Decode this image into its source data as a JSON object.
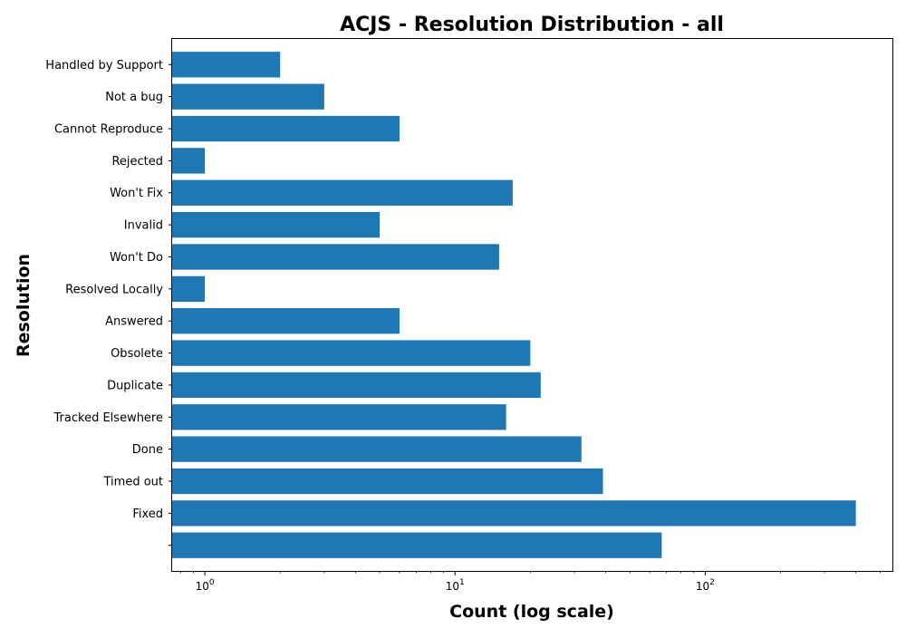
{
  "chart_data": {
    "type": "bar",
    "orientation": "horizontal",
    "title": "ACJS - Resolution Distribution - all",
    "xlabel": "Count (log scale)",
    "ylabel": "Resolution",
    "xscale": "log",
    "xlim": [
      0.74,
      560
    ],
    "x_ticks": [
      {
        "value": 1,
        "base": "10",
        "exp": "0"
      },
      {
        "value": 10,
        "base": "10",
        "exp": "1"
      },
      {
        "value": 100,
        "base": "10",
        "exp": "2"
      }
    ],
    "grid": false,
    "bar_color": "#1f77b4",
    "categories": [
      "",
      "Fixed",
      "Timed out",
      "Done",
      "Tracked Elsewhere",
      "Duplicate",
      "Obsolete",
      "Answered",
      "Resolved Locally",
      "Won't Do",
      "Invalid",
      "Won't Fix",
      "Rejected",
      "Cannot Reproduce",
      "Not a bug",
      "Handled by Support"
    ],
    "values": [
      67,
      400,
      39,
      32,
      16,
      22,
      20,
      6,
      1,
      15,
      5,
      17,
      1,
      6,
      3,
      2
    ]
  }
}
